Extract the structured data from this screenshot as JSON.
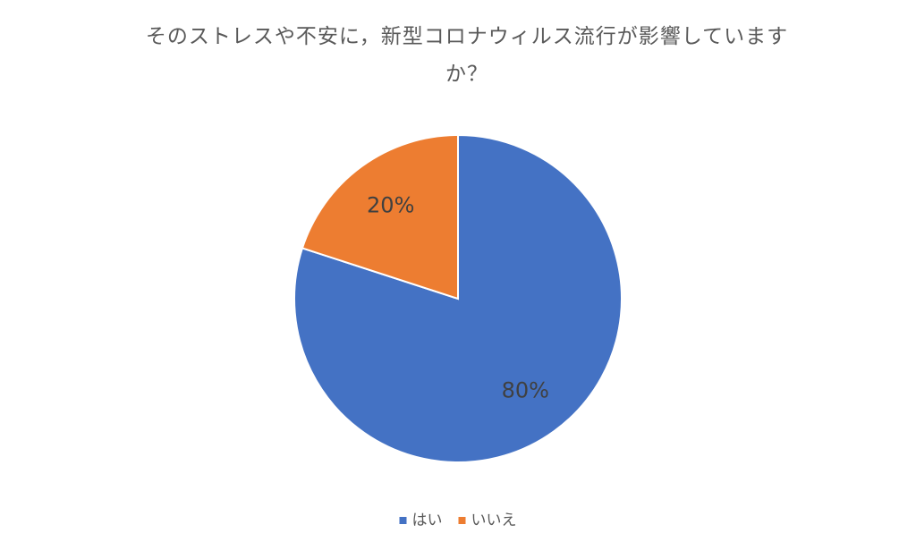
{
  "chart_data": {
    "type": "pie",
    "title": "そのストレスや不安に，新型コロナウィルス流行が影響していますか？",
    "categories": [
      "はい",
      "いいえ"
    ],
    "values": [
      80,
      20
    ],
    "value_labels": [
      "80%",
      "20%"
    ],
    "colors": [
      "#4472c4",
      "#ed7d31"
    ],
    "legend": "bottom"
  }
}
